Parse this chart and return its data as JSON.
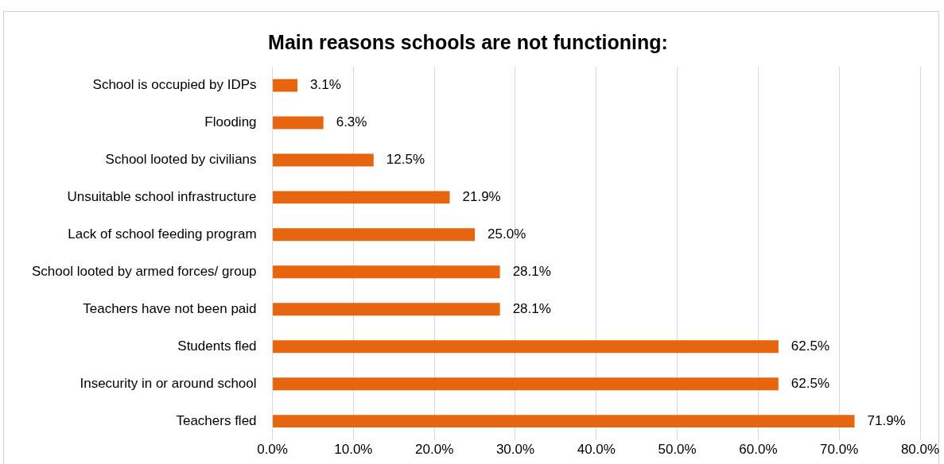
{
  "chart_data": {
    "type": "bar",
    "orientation": "horizontal",
    "title": "Main reasons schools are not functioning:",
    "categories": [
      "School is occupied by IDPs",
      "Flooding",
      "School looted by civilians",
      "Unsuitable school infrastructure",
      "Lack of school feeding program",
      "School looted by armed forces/ group",
      "Teachers have not been paid",
      "Students fled",
      "Insecurity in or around school",
      "Teachers fled"
    ],
    "values": [
      3.1,
      6.3,
      12.5,
      21.9,
      25.0,
      28.1,
      28.1,
      62.5,
      62.5,
      71.9
    ],
    "value_labels": [
      "3.1%",
      "6.3%",
      "12.5%",
      "21.9%",
      "25.0%",
      "28.1%",
      "28.1%",
      "62.5%",
      "62.5%",
      "71.9%"
    ],
    "color": "#e8650f",
    "xlim": [
      0,
      80
    ],
    "xticks": [
      {
        "value": 0,
        "label": "0.0%"
      },
      {
        "value": 10,
        "label": "10.0%"
      },
      {
        "value": 20,
        "label": "20.0%"
      },
      {
        "value": 30,
        "label": "30.0%"
      },
      {
        "value": 40,
        "label": "40.0%"
      },
      {
        "value": 50,
        "label": "50.0%"
      },
      {
        "value": 60,
        "label": "60.0%"
      },
      {
        "value": 70,
        "label": "70.0%"
      },
      {
        "value": 80,
        "label": "80.0%"
      }
    ],
    "grid": "x",
    "legend": false
  }
}
